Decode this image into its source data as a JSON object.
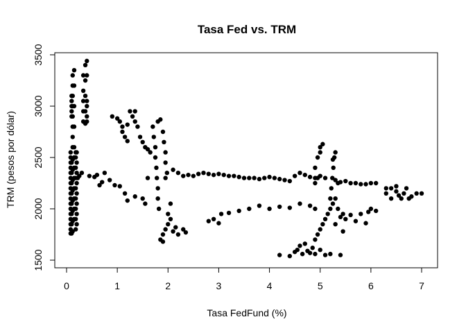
{
  "chart_data": {
    "type": "scatter",
    "title": "Tasa Fed vs. TRM",
    "xlabel": "Tasa FedFund (%)",
    "ylabel": "TRM (pesos por dólar)",
    "xlim": [
      0,
      7
    ],
    "ylim": [
      1500,
      3500
    ],
    "xticks": [
      0,
      1,
      2,
      3,
      4,
      5,
      6,
      7
    ],
    "yticks": [
      1500,
      2000,
      2500,
      3000,
      3500
    ],
    "grid": false,
    "legend": "none",
    "point_color": "#000000",
    "points": [
      [
        0.08,
        1760
      ],
      [
        0.08,
        1800
      ],
      [
        0.08,
        1850
      ],
      [
        0.08,
        1900
      ],
      [
        0.08,
        1950
      ],
      [
        0.08,
        2000
      ],
      [
        0.08,
        2050
      ],
      [
        0.08,
        2100
      ],
      [
        0.08,
        2150
      ],
      [
        0.08,
        2200
      ],
      [
        0.08,
        2250
      ],
      [
        0.08,
        2300
      ],
      [
        0.08,
        2350
      ],
      [
        0.08,
        2400
      ],
      [
        0.08,
        2450
      ],
      [
        0.08,
        2500
      ],
      [
        0.08,
        2550
      ],
      [
        0.1,
        1760
      ],
      [
        0.1,
        1850
      ],
      [
        0.1,
        1950
      ],
      [
        0.1,
        2050
      ],
      [
        0.1,
        2150
      ],
      [
        0.1,
        2250
      ],
      [
        0.1,
        2350
      ],
      [
        0.1,
        2450
      ],
      [
        0.1,
        2900
      ],
      [
        0.1,
        2950
      ],
      [
        0.1,
        3000
      ],
      [
        0.1,
        3050
      ],
      [
        0.1,
        3100
      ],
      [
        0.12,
        1780
      ],
      [
        0.12,
        1880
      ],
      [
        0.12,
        1980
      ],
      [
        0.12,
        2080
      ],
      [
        0.12,
        2180
      ],
      [
        0.12,
        2280
      ],
      [
        0.12,
        2380
      ],
      [
        0.12,
        2480
      ],
      [
        0.12,
        2600
      ],
      [
        0.12,
        2700
      ],
      [
        0.12,
        2800
      ],
      [
        0.12,
        2900
      ],
      [
        0.12,
        3000
      ],
      [
        0.12,
        3100
      ],
      [
        0.12,
        3200
      ],
      [
        0.12,
        3300
      ],
      [
        0.15,
        1900
      ],
      [
        0.15,
        2000
      ],
      [
        0.15,
        2100
      ],
      [
        0.15,
        2200
      ],
      [
        0.15,
        2300
      ],
      [
        0.15,
        2400
      ],
      [
        0.15,
        2500
      ],
      [
        0.15,
        2600
      ],
      [
        0.15,
        2800
      ],
      [
        0.15,
        3000
      ],
      [
        0.15,
        3200
      ],
      [
        0.15,
        3350
      ],
      [
        0.18,
        1800
      ],
      [
        0.18,
        1900
      ],
      [
        0.18,
        2000
      ],
      [
        0.18,
        2100
      ],
      [
        0.18,
        2200
      ],
      [
        0.18,
        2300
      ],
      [
        0.18,
        2400
      ],
      [
        0.18,
        2500
      ],
      [
        0.18,
        2550
      ],
      [
        0.2,
        1850
      ],
      [
        0.2,
        1950
      ],
      [
        0.2,
        2050
      ],
      [
        0.2,
        2150
      ],
      [
        0.2,
        2250
      ],
      [
        0.2,
        2350
      ],
      [
        0.2,
        2450
      ],
      [
        0.2,
        2550
      ],
      [
        0.22,
        2300
      ],
      [
        0.25,
        2320
      ],
      [
        0.3,
        2350
      ],
      [
        0.33,
        2850
      ],
      [
        0.33,
        2950
      ],
      [
        0.33,
        3050
      ],
      [
        0.33,
        3150
      ],
      [
        0.33,
        3300
      ],
      [
        0.37,
        2830
      ],
      [
        0.37,
        2950
      ],
      [
        0.37,
        3100
      ],
      [
        0.37,
        3250
      ],
      [
        0.37,
        3400
      ],
      [
        0.4,
        2850
      ],
      [
        0.4,
        2900
      ],
      [
        0.4,
        3000
      ],
      [
        0.4,
        3050
      ],
      [
        0.4,
        3300
      ],
      [
        0.4,
        3440
      ],
      [
        0.45,
        2320
      ],
      [
        0.55,
        2310
      ],
      [
        0.6,
        2330
      ],
      [
        0.7,
        2260
      ],
      [
        0.75,
        2350
      ],
      [
        0.85,
        2280
      ],
      [
        0.95,
        2230
      ],
      [
        0.65,
        2230
      ],
      [
        0.9,
        2900
      ],
      [
        1.0,
        2880
      ],
      [
        1.05,
        2850
      ],
      [
        1.1,
        2800
      ],
      [
        1.1,
        2750
      ],
      [
        1.15,
        2700
      ],
      [
        1.2,
        2820
      ],
      [
        1.25,
        2950
      ],
      [
        1.3,
        2900
      ],
      [
        1.35,
        2850
      ],
      [
        1.4,
        2800
      ],
      [
        1.45,
        2700
      ],
      [
        1.5,
        2650
      ],
      [
        1.55,
        2600
      ],
      [
        1.6,
        2580
      ],
      [
        1.65,
        2550
      ],
      [
        1.35,
        2950
      ],
      [
        1.2,
        2660
      ],
      [
        1.05,
        2220
      ],
      [
        1.15,
        2150
      ],
      [
        1.2,
        2080
      ],
      [
        1.35,
        2120
      ],
      [
        1.5,
        2100
      ],
      [
        1.55,
        2050
      ],
      [
        1.6,
        2300
      ],
      [
        1.7,
        2800
      ],
      [
        1.72,
        2700
      ],
      [
        1.75,
        2600
      ],
      [
        1.75,
        2500
      ],
      [
        1.77,
        2400
      ],
      [
        1.78,
        2300
      ],
      [
        1.8,
        2200
      ],
      [
        1.8,
        2100
      ],
      [
        1.82,
        2000
      ],
      [
        1.8,
        2850
      ],
      [
        1.85,
        2870
      ],
      [
        1.9,
        2750
      ],
      [
        1.92,
        2650
      ],
      [
        1.95,
        2550
      ],
      [
        1.95,
        2450
      ],
      [
        1.98,
        2350
      ],
      [
        1.95,
        2300
      ],
      [
        1.85,
        1700
      ],
      [
        1.9,
        1750
      ],
      [
        1.95,
        1800
      ],
      [
        2.0,
        1850
      ],
      [
        2.05,
        1900
      ],
      [
        2.1,
        1780
      ],
      [
        2.15,
        1820
      ],
      [
        2.2,
        1750
      ],
      [
        2.3,
        1800
      ],
      [
        2.35,
        1770
      ],
      [
        2.0,
        1950
      ],
      [
        2.05,
        2050
      ],
      [
        1.9,
        1680
      ],
      [
        2.1,
        2380
      ],
      [
        2.2,
        2350
      ],
      [
        2.3,
        2320
      ],
      [
        2.4,
        2330
      ],
      [
        2.5,
        2320
      ],
      [
        2.6,
        2340
      ],
      [
        2.7,
        2350
      ],
      [
        2.8,
        2340
      ],
      [
        2.9,
        2330
      ],
      [
        3.0,
        2340
      ],
      [
        3.1,
        2330
      ],
      [
        3.2,
        2320
      ],
      [
        3.3,
        2320
      ],
      [
        3.4,
        2310
      ],
      [
        3.5,
        2300
      ],
      [
        3.6,
        2300
      ],
      [
        3.7,
        2300
      ],
      [
        3.8,
        2290
      ],
      [
        3.9,
        2300
      ],
      [
        4.0,
        2310
      ],
      [
        4.1,
        2300
      ],
      [
        4.2,
        2290
      ],
      [
        4.3,
        2280
      ],
      [
        4.4,
        2270
      ],
      [
        4.5,
        2320
      ],
      [
        4.6,
        2350
      ],
      [
        4.7,
        2330
      ],
      [
        4.8,
        2310
      ],
      [
        4.9,
        2300
      ],
      [
        5.0,
        2320
      ],
      [
        5.1,
        2300
      ],
      [
        5.3,
        2280
      ],
      [
        5.4,
        2260
      ],
      [
        5.5,
        2270
      ],
      [
        5.6,
        2250
      ],
      [
        5.7,
        2250
      ],
      [
        5.8,
        2240
      ],
      [
        5.9,
        2240
      ],
      [
        6.0,
        2250
      ],
      [
        6.1,
        2250
      ],
      [
        2.8,
        1880
      ],
      [
        2.9,
        1900
      ],
      [
        3.0,
        1860
      ],
      [
        3.05,
        1950
      ],
      [
        3.2,
        1960
      ],
      [
        3.4,
        1980
      ],
      [
        3.6,
        2000
      ],
      [
        3.8,
        2030
      ],
      [
        4.0,
        2000
      ],
      [
        4.2,
        2020
      ],
      [
        4.4,
        2010
      ],
      [
        4.6,
        2050
      ],
      [
        4.8,
        2030
      ],
      [
        4.9,
        2000
      ],
      [
        4.2,
        1550
      ],
      [
        4.4,
        1540
      ],
      [
        4.5,
        1580
      ],
      [
        4.55,
        1600
      ],
      [
        4.6,
        1640
      ],
      [
        4.65,
        1560
      ],
      [
        4.7,
        1660
      ],
      [
        4.75,
        1590
      ],
      [
        4.8,
        1570
      ],
      [
        4.85,
        1620
      ],
      [
        4.9,
        1560
      ],
      [
        5.0,
        1600
      ],
      [
        5.1,
        1550
      ],
      [
        5.2,
        1560
      ],
      [
        5.4,
        1550
      ],
      [
        4.9,
        1700
      ],
      [
        4.95,
        1750
      ],
      [
        5.0,
        1800
      ],
      [
        5.05,
        1850
      ],
      [
        5.1,
        1900
      ],
      [
        5.15,
        1950
      ],
      [
        5.2,
        2000
      ],
      [
        5.25,
        2050
      ],
      [
        5.3,
        2100
      ],
      [
        5.35,
        2000
      ],
      [
        5.45,
        1950
      ],
      [
        5.6,
        1940
      ],
      [
        5.8,
        1950
      ],
      [
        5.95,
        1970
      ],
      [
        6.0,
        2000
      ],
      [
        6.1,
        1980
      ],
      [
        5.2,
        2100
      ],
      [
        5.22,
        2200
      ],
      [
        5.24,
        2300
      ],
      [
        5.26,
        2400
      ],
      [
        5.28,
        2500
      ],
      [
        5.3,
        2550
      ],
      [
        5.25,
        2480
      ],
      [
        5.35,
        2250
      ],
      [
        4.9,
        2400
      ],
      [
        4.95,
        2500
      ],
      [
        5.0,
        2600
      ],
      [
        5.05,
        2630
      ],
      [
        5.0,
        2550
      ],
      [
        4.95,
        2300
      ],
      [
        4.9,
        2250
      ],
      [
        5.3,
        1850
      ],
      [
        5.4,
        1920
      ],
      [
        5.5,
        1900
      ],
      [
        5.7,
        1880
      ],
      [
        5.9,
        1860
      ],
      [
        5.45,
        1780
      ],
      [
        6.3,
        2150
      ],
      [
        6.4,
        2200
      ],
      [
        6.5,
        2170
      ],
      [
        6.55,
        2130
      ],
      [
        6.6,
        2100
      ],
      [
        6.65,
        2150
      ],
      [
        6.7,
        2200
      ],
      [
        6.75,
        2100
      ],
      [
        6.8,
        2120
      ],
      [
        6.9,
        2150
      ],
      [
        7.0,
        2150
      ],
      [
        6.5,
        2220
      ],
      [
        6.4,
        2100
      ],
      [
        6.3,
        2200
      ]
    ]
  }
}
